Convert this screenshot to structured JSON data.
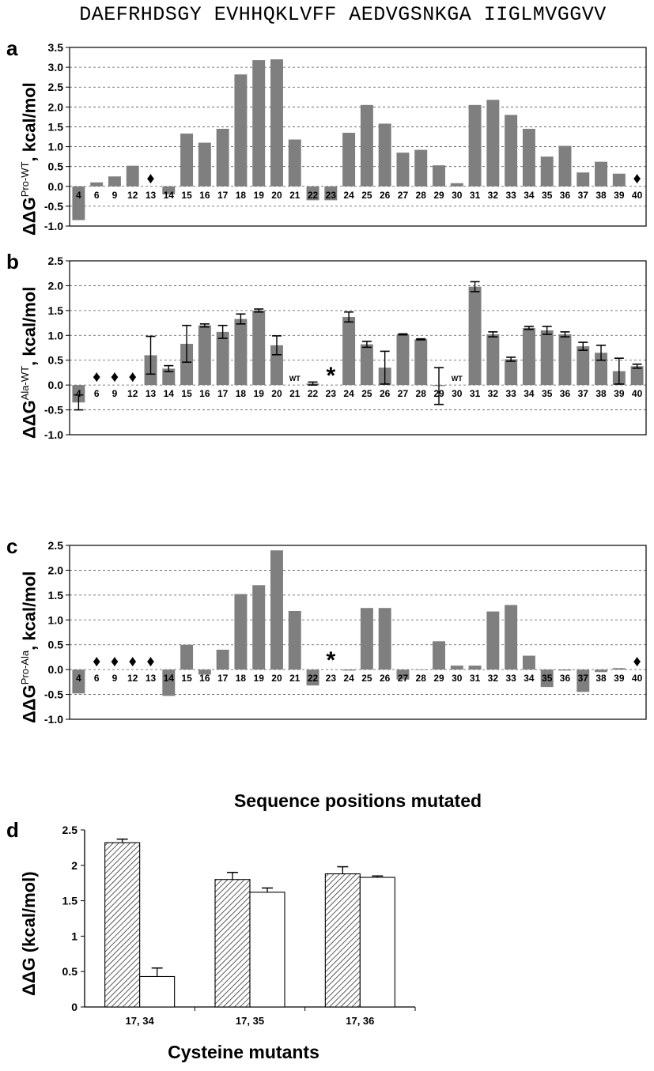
{
  "sequence": "DAEFRHDSGY EVHHQKLVFF AEDVGSNKGA IIGLMVGGVV",
  "chart_data": [
    {
      "type": "bar",
      "panel": "a",
      "ylabel_main": "ΔΔG",
      "ylabel_sup": "Pro-WT",
      "ylabel_tail": ", kcal/mol",
      "ylim": [
        -1.0,
        3.5
      ],
      "yticks": [
        "-1.0",
        "-0.5",
        "0.0",
        "0.5",
        "1.0",
        "1.5",
        "2.0",
        "2.5",
        "3.0",
        "3.5"
      ],
      "grid": true,
      "categories": [
        "4",
        "6",
        "9",
        "12",
        "13",
        "14",
        "15",
        "16",
        "17",
        "18",
        "19",
        "20",
        "21",
        "22",
        "23",
        "24",
        "25",
        "26",
        "27",
        "28",
        "29",
        "30",
        "31",
        "32",
        "33",
        "34",
        "35",
        "36",
        "37",
        "38",
        "39",
        "40"
      ],
      "values": [
        -0.85,
        0.1,
        0.25,
        0.52,
        null,
        -0.2,
        1.33,
        1.1,
        1.45,
        2.82,
        3.18,
        3.2,
        1.18,
        -0.35,
        -0.35,
        1.35,
        2.05,
        1.58,
        0.85,
        0.92,
        0.53,
        0.08,
        2.05,
        2.18,
        1.8,
        1.45,
        0.75,
        1.02,
        0.35,
        0.62,
        0.32,
        null
      ],
      "markers": [
        {
          "category": "13",
          "symbol": "♦"
        },
        {
          "category": "40",
          "symbol": "♦"
        }
      ]
    },
    {
      "type": "bar",
      "panel": "b",
      "ylabel_main": "ΔΔG",
      "ylabel_sup": "Ala-WT",
      "ylabel_tail": ", kcal/mol",
      "ylim": [
        -1.0,
        2.5
      ],
      "yticks": [
        "-1.0",
        "-0.5",
        "0.0",
        "0.5",
        "1.0",
        "1.5",
        "2.0",
        "2.5"
      ],
      "grid": true,
      "categories": [
        "4",
        "6",
        "9",
        "12",
        "13",
        "14",
        "15",
        "16",
        "17",
        "18",
        "19",
        "20",
        "21",
        "22",
        "23",
        "24",
        "25",
        "26",
        "27",
        "28",
        "29",
        "30",
        "31",
        "32",
        "33",
        "34",
        "35",
        "36",
        "37",
        "38",
        "39",
        "40"
      ],
      "values": [
        -0.35,
        null,
        null,
        null,
        0.6,
        0.33,
        0.83,
        1.2,
        1.07,
        1.33,
        1.5,
        0.8,
        null,
        0.03,
        null,
        1.37,
        0.82,
        0.35,
        1.02,
        0.92,
        -0.02,
        null,
        1.98,
        1.02,
        0.52,
        1.15,
        1.1,
        1.02,
        0.78,
        0.65,
        0.28,
        0.38
      ],
      "errors": [
        0.15,
        null,
        null,
        null,
        0.38,
        0.06,
        0.37,
        0.03,
        0.13,
        0.1,
        0.03,
        0.19,
        null,
        0.03,
        null,
        0.1,
        0.06,
        0.33,
        0.01,
        0.01,
        0.37,
        null,
        0.1,
        0.05,
        0.04,
        0.03,
        0.08,
        0.05,
        0.08,
        0.15,
        0.26,
        0.04
      ],
      "markers": [
        {
          "category": "6",
          "symbol": "♦"
        },
        {
          "category": "9",
          "symbol": "♦"
        },
        {
          "category": "12",
          "symbol": "♦"
        },
        {
          "category": "21",
          "symbol": "WT"
        },
        {
          "category": "23",
          "symbol": "*"
        },
        {
          "category": "30",
          "symbol": "WT"
        }
      ]
    },
    {
      "type": "bar",
      "panel": "c",
      "ylabel_main": "ΔΔG",
      "ylabel_sup": "Pro-Ala",
      "ylabel_tail": ", kcal/mol",
      "ylim": [
        -1.0,
        2.5
      ],
      "yticks": [
        "-1.0",
        "-0.5",
        "0.0",
        "0.5",
        "1.0",
        "1.5",
        "2.0",
        "2.5"
      ],
      "grid": true,
      "xlabel": "Sequence positions mutated",
      "categories": [
        "4",
        "6",
        "9",
        "12",
        "13",
        "14",
        "15",
        "16",
        "17",
        "18",
        "19",
        "20",
        "21",
        "22",
        "23",
        "24",
        "25",
        "26",
        "27",
        "28",
        "29",
        "30",
        "31",
        "32",
        "33",
        "34",
        "35",
        "36",
        "37",
        "38",
        "39",
        "40"
      ],
      "values": [
        -0.48,
        null,
        null,
        null,
        null,
        -0.53,
        0.5,
        -0.1,
        0.4,
        1.52,
        1.7,
        2.4,
        1.18,
        -0.32,
        null,
        -0.02,
        1.24,
        1.24,
        -0.2,
        0.0,
        0.57,
        0.08,
        0.08,
        1.17,
        1.3,
        0.28,
        -0.35,
        -0.02,
        -0.45,
        -0.05,
        0.03,
        null
      ],
      "markers": [
        {
          "category": "6",
          "symbol": "♦"
        },
        {
          "category": "9",
          "symbol": "♦"
        },
        {
          "category": "12",
          "symbol": "♦"
        },
        {
          "category": "13",
          "symbol": "♦"
        },
        {
          "category": "23",
          "symbol": "*"
        },
        {
          "category": "40",
          "symbol": "♦"
        }
      ]
    },
    {
      "type": "bar",
      "panel": "d",
      "ylabel": "ΔΔG (kcal/mol)",
      "xlabel": "Cysteine mutants",
      "ylim": [
        0,
        2.5
      ],
      "yticks": [
        "0",
        "0.5",
        "1",
        "1.5",
        "2",
        "2.5"
      ],
      "grid": false,
      "categories": [
        "17, 34",
        "17, 35",
        "17, 36"
      ],
      "series": [
        {
          "style": "hatched",
          "values": [
            2.32,
            1.8,
            1.88
          ],
          "errors": [
            0.05,
            0.1,
            0.1
          ]
        },
        {
          "style": "white",
          "values": [
            0.43,
            1.62,
            1.83
          ],
          "errors": [
            0.12,
            0.06,
            0.02
          ]
        }
      ]
    }
  ]
}
